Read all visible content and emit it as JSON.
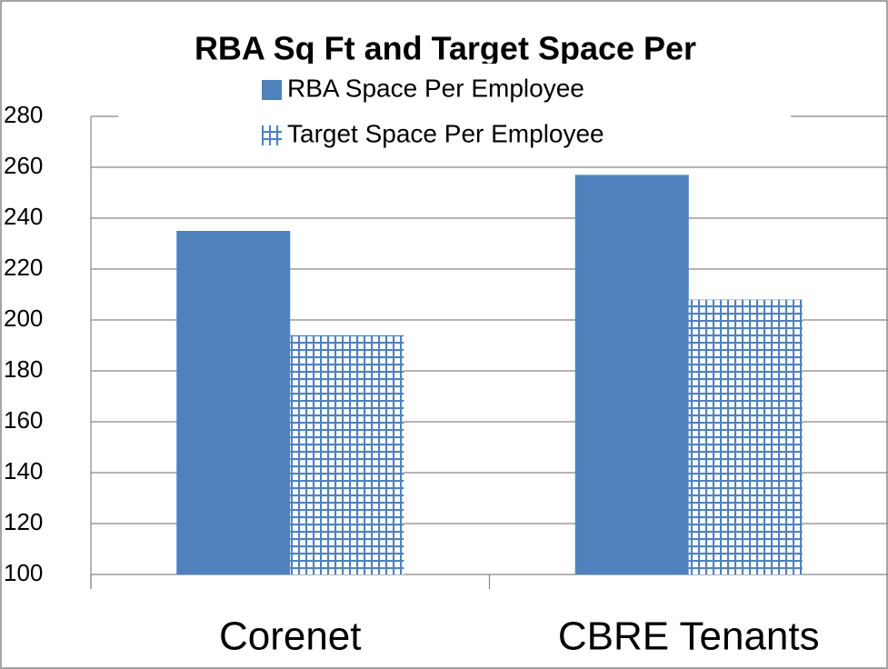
{
  "chart_data": {
    "type": "bar",
    "title": "RBA Sq Ft and Target Space Per",
    "categories": [
      "Corenet",
      "CBRE Tenants"
    ],
    "series": [
      {
        "name": "RBA Space Per Employee",
        "color": "#4f81bd",
        "values": [
          235,
          257
        ]
      },
      {
        "name": "Target Space Per Employee",
        "color": "#4f81bd",
        "pattern": "grid",
        "values": [
          194,
          208
        ]
      }
    ],
    "ylim": [
      100,
      280
    ],
    "yticks": [
      100,
      120,
      140,
      160,
      180,
      200,
      220,
      240,
      260,
      280
    ],
    "grid": true,
    "legend": "top"
  }
}
